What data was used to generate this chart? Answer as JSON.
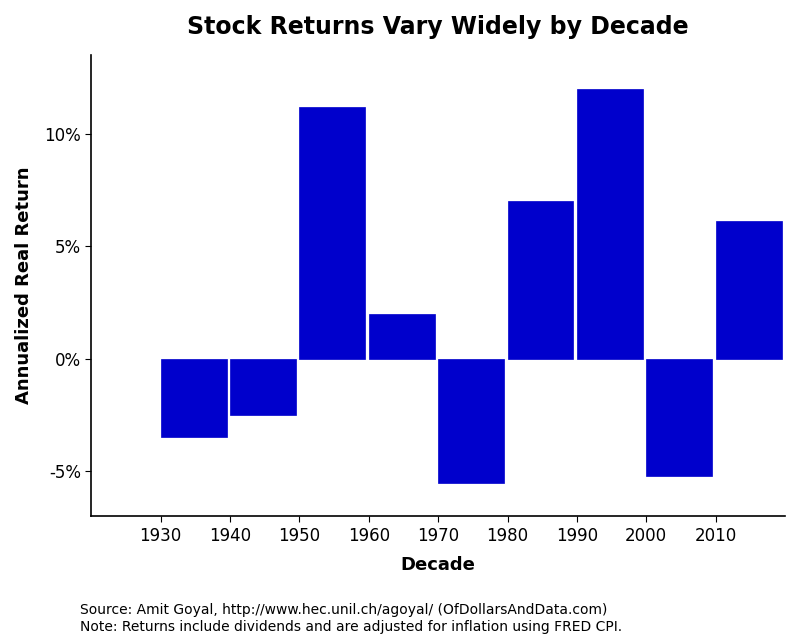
{
  "decades": [
    1926,
    1936,
    1946,
    1956,
    1966,
    1976,
    1986,
    1996,
    2006
  ],
  "values": [
    -3.5,
    -2.5,
    11.2,
    2.0,
    -5.5,
    7.0,
    12.0,
    -5.2,
    6.1
  ],
  "bar_color": "#0000CC",
  "bar_width": 9.5,
  "title": "Stock Returns Vary Widely by Decade",
  "xlabel": "Decade",
  "ylabel": "Annualized Real Return",
  "yticks": [
    -5,
    0,
    5,
    10
  ],
  "ytick_labels": [
    "-5%",
    "0%",
    "5%",
    "10%"
  ],
  "ylim": [
    -7.0,
    13.5
  ],
  "xlim": [
    1920,
    2020
  ],
  "xtick_positions": [
    1930,
    1940,
    1950,
    1960,
    1970,
    1980,
    1990,
    2000,
    2010
  ],
  "xtick_labels": [
    "1930",
    "1940",
    "1950",
    "1960",
    "1970",
    "1980",
    "1990",
    "2000",
    "2010"
  ],
  "source_text": "Source: Amit Goyal, http://www.hec.unil.ch/agoyal/ (OfDollarsAndData.com)\nNote: Returns include dividends and are adjusted for inflation using FRED CPI.",
  "title_fontsize": 17,
  "axis_label_fontsize": 13,
  "tick_fontsize": 12,
  "source_fontsize": 10,
  "background_color": "#FFFFFF",
  "spine_color": "#000000"
}
